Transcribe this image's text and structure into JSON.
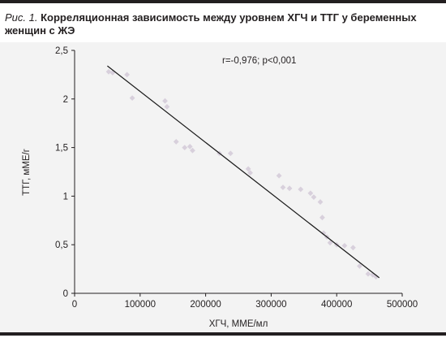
{
  "caption": {
    "prefix": "Рис. 1.",
    "text": "Корреляционная зависимость между уровнем ХГЧ и ТТГ у беременных женщин с ЖЭ"
  },
  "chart_data": {
    "type": "scatter",
    "xlabel": "ХГЧ, ММЕ/мл",
    "ylabel": "ТТГ, мМЕ/г",
    "annotation": "r=-0,976; p<0,001",
    "xlim": [
      0,
      500000
    ],
    "ylim": [
      0,
      2.5
    ],
    "xticks": [
      0,
      100000,
      200000,
      300000,
      400000,
      500000
    ],
    "xtick_labels": [
      "0",
      "100000",
      "200000",
      "300000",
      "400000",
      "500000"
    ],
    "yticks": [
      0,
      0.5,
      1,
      1.5,
      2,
      2.5
    ],
    "ytick_labels": [
      "0",
      "0,5",
      "1",
      "1,5",
      "2",
      "2,5"
    ],
    "grid": false,
    "point_color": "#d8d0dc",
    "line_color": "#1a1a1a",
    "series": [
      {
        "values": [
          [
            52000,
            2.28
          ],
          [
            58000,
            2.27
          ],
          [
            80000,
            2.25
          ],
          [
            88000,
            2.01
          ],
          [
            138000,
            1.98
          ],
          [
            141000,
            1.92
          ],
          [
            155000,
            1.56
          ],
          [
            168000,
            1.5
          ],
          [
            176000,
            1.51
          ],
          [
            180000,
            1.47
          ],
          [
            221000,
            1.44
          ],
          [
            238000,
            1.44
          ],
          [
            265000,
            1.28
          ],
          [
            268000,
            1.24
          ],
          [
            312000,
            1.21
          ],
          [
            318000,
            1.09
          ],
          [
            328000,
            1.08
          ],
          [
            345000,
            1.07
          ],
          [
            360000,
            1.03
          ],
          [
            365000,
            0.99
          ],
          [
            375000,
            0.94
          ],
          [
            378000,
            0.78
          ],
          [
            380000,
            0.62
          ],
          [
            385000,
            0.58
          ],
          [
            390000,
            0.52
          ],
          [
            400000,
            0.5
          ],
          [
            412000,
            0.49
          ],
          [
            425000,
            0.47
          ],
          [
            435000,
            0.28
          ],
          [
            448000,
            0.2
          ],
          [
            455000,
            0.19
          ],
          [
            460000,
            0.17
          ]
        ]
      }
    ],
    "trendline": {
      "x": [
        50000,
        465000
      ],
      "y": [
        2.34,
        0.16
      ]
    }
  }
}
